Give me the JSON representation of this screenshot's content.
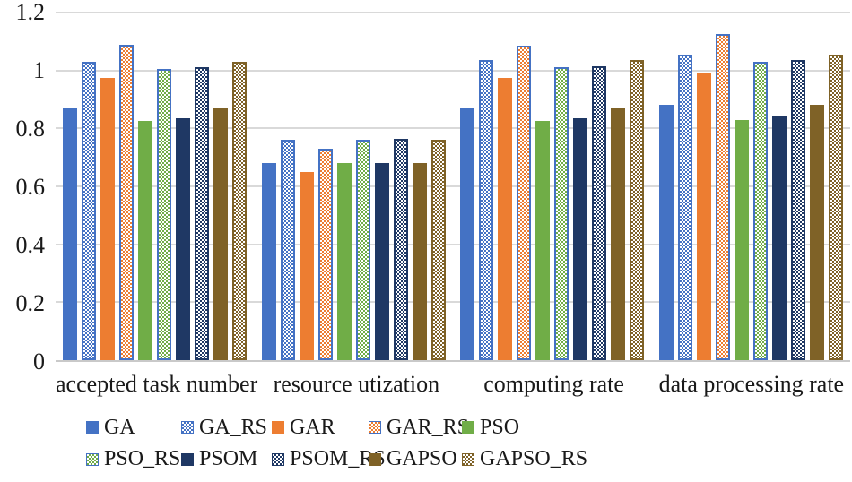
{
  "chart_data": {
    "type": "bar",
    "title": "",
    "xlabel": "",
    "ylabel": "",
    "categories": [
      "accepted task number",
      "resource utization",
      "computing rate",
      "data processing rate"
    ],
    "y_ticks": [
      "1.2",
      "1",
      "0.8",
      "0.6",
      "0.4",
      "0.2",
      "0"
    ],
    "ylim": [
      0,
      1.2
    ],
    "grid": true,
    "legend_position": "bottom",
    "legend_rows": 2,
    "series": [
      {
        "name": "GA",
        "color": "#4472C4",
        "pattern": "solid",
        "border": "#4472C4",
        "values": [
          0.87,
          0.68,
          0.87,
          0.88
        ]
      },
      {
        "name": "GA_RS",
        "color": "#4472C4",
        "pattern": "checker",
        "border": "#4472C4",
        "values": [
          1.03,
          0.76,
          1.035,
          1.055
        ]
      },
      {
        "name": "GAR",
        "color": "#ED7D31",
        "pattern": "solid",
        "border": "#ED7D31",
        "values": [
          0.975,
          0.65,
          0.975,
          0.99
        ]
      },
      {
        "name": "GAR_RS",
        "color": "#ED7D31",
        "pattern": "checker",
        "border": "#4472C4",
        "values": [
          1.09,
          0.73,
          1.085,
          1.125
        ]
      },
      {
        "name": "PSO",
        "color": "#70AD47",
        "pattern": "solid",
        "border": "#70AD47",
        "values": [
          0.825,
          0.68,
          0.825,
          0.83
        ]
      },
      {
        "name": "PSO_RS",
        "color": "#70AD47",
        "pattern": "checker",
        "border": "#4472C4",
        "values": [
          1.005,
          0.76,
          1.01,
          1.03
        ]
      },
      {
        "name": "PSOM",
        "color": "#1F3864",
        "pattern": "solid",
        "border": "#1F3864",
        "values": [
          0.835,
          0.68,
          0.835,
          0.845
        ]
      },
      {
        "name": "PSOM_RS",
        "color": "#1F3864",
        "pattern": "checker",
        "border": "#1F3864",
        "values": [
          1.01,
          0.765,
          1.015,
          1.035
        ]
      },
      {
        "name": "GAPSO",
        "color": "#7F6227",
        "pattern": "solid",
        "border": "#7F6227",
        "values": [
          0.87,
          0.68,
          0.87,
          0.88
        ]
      },
      {
        "name": "GAPSO_RS",
        "color": "#7F6227",
        "pattern": "checker",
        "border": "#7F6227",
        "values": [
          1.03,
          0.76,
          1.035,
          1.055
        ]
      }
    ]
  },
  "colors": {
    "background": "#ffffff",
    "gridline": "#d9d9d9",
    "axis_line": "#c9c9c9",
    "text": "#1a1a1a"
  }
}
